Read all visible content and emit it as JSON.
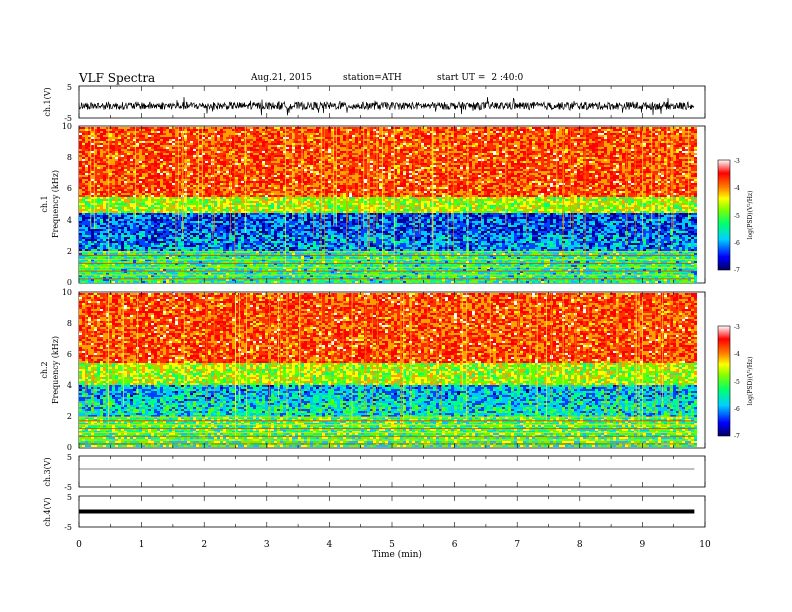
{
  "header": {
    "title": "VLF Spectra",
    "date": "Aug.21, 2015",
    "station": "station=ATH",
    "start_label": "start  UT =",
    "start_time": "2 :40:0"
  },
  "xaxis": {
    "label": "Time (min)",
    "ticks": [
      "0",
      "1",
      "2",
      "3",
      "4",
      "5",
      "6",
      "7",
      "8",
      "9",
      "10"
    ],
    "range": [
      0,
      10
    ],
    "data_end": 9.83
  },
  "chart_data": [
    {
      "type": "line",
      "title": "",
      "ylabel": "ch.1(V)",
      "ylim": [
        -5,
        5
      ],
      "ytick_labels": [
        "5",
        "-5"
      ],
      "description_values": {
        "baseline_v": -1.2,
        "noise_amplitude_v": 1.2
      },
      "x": [
        0,
        1,
        2,
        3,
        4,
        5,
        6,
        7,
        8,
        9,
        9.83
      ],
      "values": [
        -1.3,
        -1.1,
        -1.2,
        -1.0,
        -1.3,
        -1.1,
        -1.2,
        -1.0,
        -1.3,
        -1.1,
        -1.2
      ]
    },
    {
      "type": "heatmap",
      "ylabel": "ch.1\nFrequency (kHz)",
      "ylabel_ch": "ch.1",
      "ylabel_freq": "Frequency (kHz)",
      "ylim": [
        0,
        10
      ],
      "ytick_labels": [
        "0",
        "2",
        "4",
        "6",
        "8",
        "10"
      ],
      "colorbar": {
        "label": "log(PSD)(V²/Hz)",
        "range": [
          -7,
          -3
        ],
        "ticks": [
          "-3",
          "-4",
          "-5",
          "-6",
          "-7"
        ]
      },
      "bands_khz": [
        {
          "from": 0,
          "to": 2,
          "level": -5.6
        },
        {
          "from": 2,
          "to": 3,
          "level": -6.2
        },
        {
          "from": 3,
          "to": 4.5,
          "level": -6.4
        },
        {
          "from": 4.5,
          "to": 5.5,
          "level": -5.0
        },
        {
          "from": 5.5,
          "to": 10,
          "level": -4.0
        }
      ]
    },
    {
      "type": "heatmap",
      "ylabel": "ch.2\nFrequency (kHz)",
      "ylabel_ch": "ch.2",
      "ylabel_freq": "Frequency (kHz)",
      "ylim": [
        0,
        10
      ],
      "ytick_labels": [
        "0",
        "2",
        "4",
        "6",
        "8",
        "10"
      ],
      "colorbar": {
        "label": "log(PSD)(V²/Hz)",
        "range": [
          -7,
          -3
        ],
        "ticks": [
          "-3",
          "-4",
          "-5",
          "-6",
          "-7"
        ]
      },
      "bands_khz": [
        {
          "from": 0,
          "to": 2,
          "level": -5.4
        },
        {
          "from": 2,
          "to": 3,
          "level": -5.8
        },
        {
          "from": 3,
          "to": 4,
          "level": -6.0
        },
        {
          "from": 4,
          "to": 5.5,
          "level": -5.0
        },
        {
          "from": 5.5,
          "to": 10,
          "level": -4.0
        }
      ]
    },
    {
      "type": "line",
      "ylabel": "ch.3(V)",
      "ylim": [
        -5,
        5
      ],
      "ytick_labels": [
        "5",
        "-5"
      ],
      "x": [
        0,
        9.83
      ],
      "values": [
        0,
        0
      ]
    },
    {
      "type": "line",
      "ylabel": "ch.4(V)",
      "ylim": [
        -5,
        5
      ],
      "ytick_labels": [
        "5",
        "-5"
      ],
      "x": [
        0,
        9.83
      ],
      "values": [
        0,
        0
      ]
    }
  ],
  "colors": {
    "ramp": [
      "#0000a0",
      "#0040ff",
      "#00c8ff",
      "#00ff80",
      "#60ff00",
      "#ffff00",
      "#ffa000",
      "#ff3000",
      "#ff0000",
      "#ffffff"
    ]
  }
}
